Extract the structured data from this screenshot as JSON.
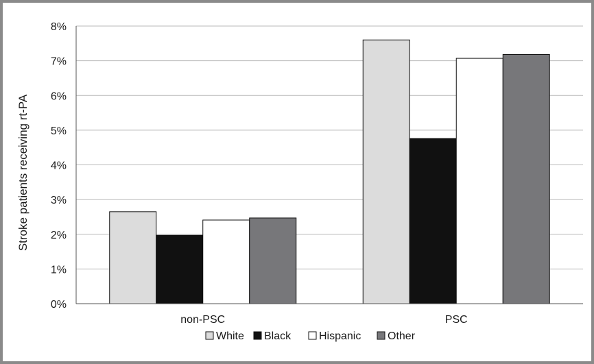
{
  "chart_data": {
    "type": "bar",
    "ylabel": "Stroke patients receiving rt-PA",
    "xlabel": "",
    "ylim": [
      0,
      8
    ],
    "y_ticks": [
      "0%",
      "1%",
      "2%",
      "3%",
      "4%",
      "5%",
      "6%",
      "7%",
      "8%"
    ],
    "categories": [
      "non-PSC",
      "PSC"
    ],
    "series": [
      {
        "name": "White",
        "color": "#dcdcdc",
        "values": [
          2.65,
          7.6
        ]
      },
      {
        "name": "Black",
        "color": "#111111",
        "values": [
          1.97,
          4.76
        ]
      },
      {
        "name": "Hispanic",
        "color": "#ffffff",
        "values": [
          2.41,
          7.07
        ]
      },
      {
        "name": "Other",
        "color": "#77777a",
        "values": [
          2.47,
          7.18
        ]
      }
    ],
    "grid": true,
    "legend_position": "bottom"
  }
}
